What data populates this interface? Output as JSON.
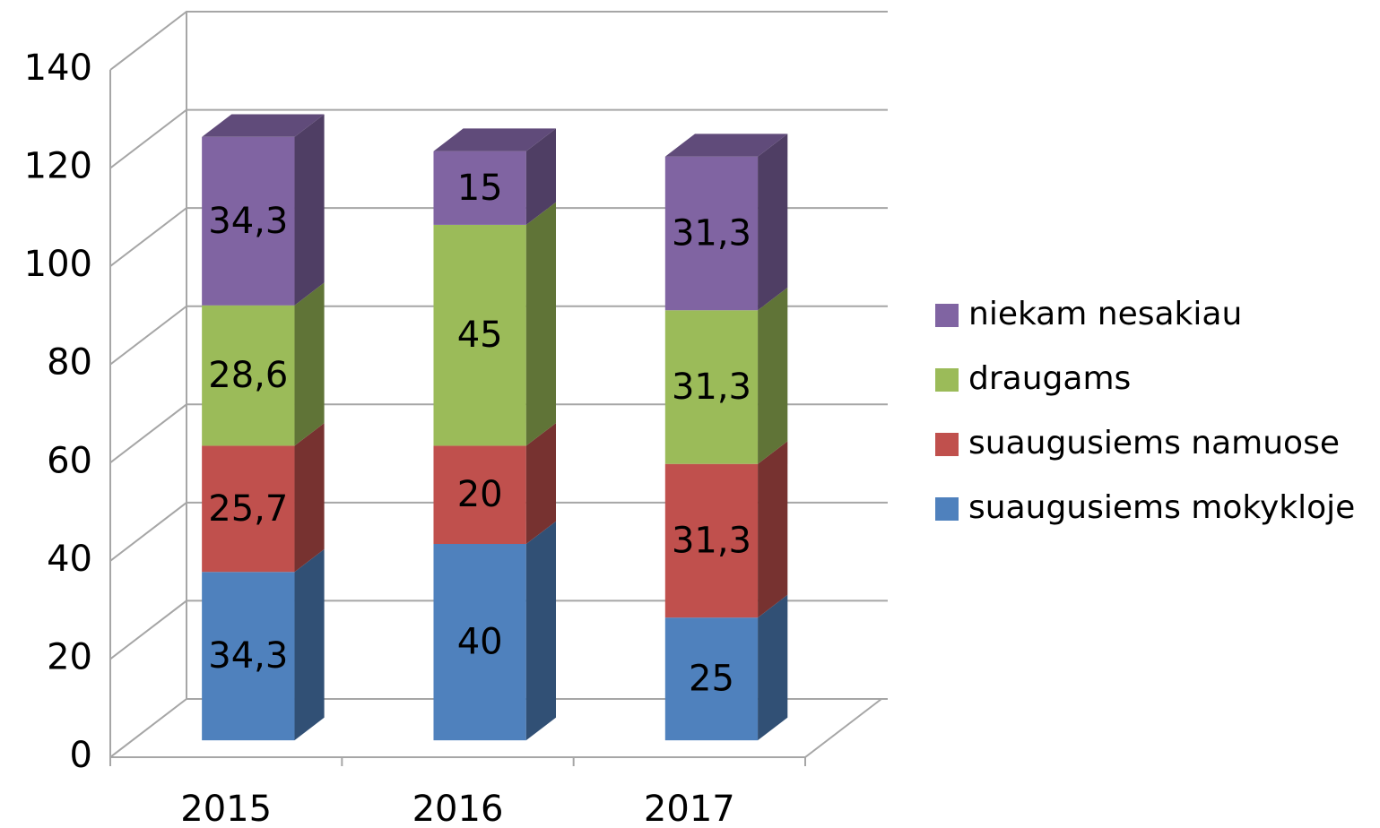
{
  "chart_data": {
    "type": "bar",
    "stacked": true,
    "three_d": true,
    "categories": [
      "2015",
      "2016",
      "2017"
    ],
    "series": [
      {
        "name": "suaugusiems mokykloje",
        "color": "#4f81bd",
        "values": [
          34.3,
          40,
          25
        ],
        "value_labels": [
          "34,3",
          "40",
          "25"
        ]
      },
      {
        "name": "suaugusiems namuose",
        "color": "#c0504d",
        "values": [
          25.7,
          20,
          31.3
        ],
        "value_labels": [
          "25,7",
          "20",
          "31,3"
        ]
      },
      {
        "name": "draugams",
        "color": "#9bbb59",
        "values": [
          28.6,
          45,
          31.3
        ],
        "value_labels": [
          "28,6",
          "45",
          "31,3"
        ]
      },
      {
        "name": "niekam nesakiau",
        "color": "#8064a2",
        "values": [
          34.3,
          15,
          31.3
        ],
        "value_labels": [
          "34,3",
          "15",
          "31,3"
        ]
      }
    ],
    "ylim": [
      0,
      140
    ],
    "yticks": [
      0,
      20,
      40,
      60,
      80,
      100,
      120,
      140
    ],
    "grid": true,
    "legend": "right"
  }
}
